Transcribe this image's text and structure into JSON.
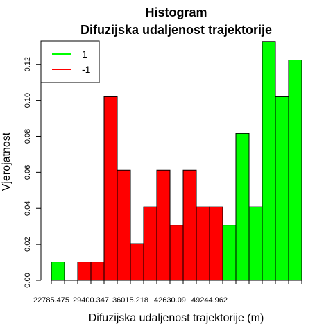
{
  "chart_data": {
    "type": "bar",
    "title": "Histogram",
    "subtitle": "Difuzijska udaljenost trajektorije",
    "xlabel": "Difuzijska udaljenost trajektorije (m)",
    "ylabel": "Vjerojatnost",
    "xlim": [
      22785.475,
      60270
    ],
    "ylim": [
      0,
      0.133
    ],
    "x_tick_labels": [
      "22785.475",
      "29400.347",
      "36015.218",
      "42630.09",
      "49244.962"
    ],
    "y_ticks": [
      0.0,
      0.02,
      0.04,
      0.06,
      0.08,
      0.1,
      0.12
    ],
    "y_tick_labels": [
      "0.00",
      "0.02",
      "0.04",
      "0.06",
      "0.08",
      "0.10",
      "0.12"
    ],
    "bin_edges": [
      22785.475,
      24770.937,
      26756.399,
      28741.861,
      30727.323,
      32712.785,
      34698.247,
      36683.709,
      38669.171,
      40654.633,
      42640.095,
      44625.557,
      46611.019,
      48596.481,
      50581.943,
      52567.405,
      54552.867,
      56538.329,
      58523.791,
      60509.253
    ],
    "series": [
      {
        "name": "1",
        "color": "#00ff00",
        "values": [
          0.0102,
          0,
          0,
          0,
          0,
          0,
          0.0102,
          0.0306,
          0.051,
          0.0102,
          0.0408,
          0.0306,
          0.0306,
          0.0306,
          0.0816,
          0.0408,
          0.1327,
          0.102,
          0.1224
        ]
      },
      {
        "name": "-1",
        "color": "#ff0000",
        "values": [
          0,
          0,
          0.0102,
          0.0102,
          0.102,
          0.0612,
          0.0204,
          0.0408,
          0.0612,
          0.0306,
          0.0612,
          0.0408,
          0.0408,
          0,
          0,
          0,
          0,
          0,
          0
        ]
      }
    ],
    "legend_position": "top-left",
    "grid": false
  }
}
